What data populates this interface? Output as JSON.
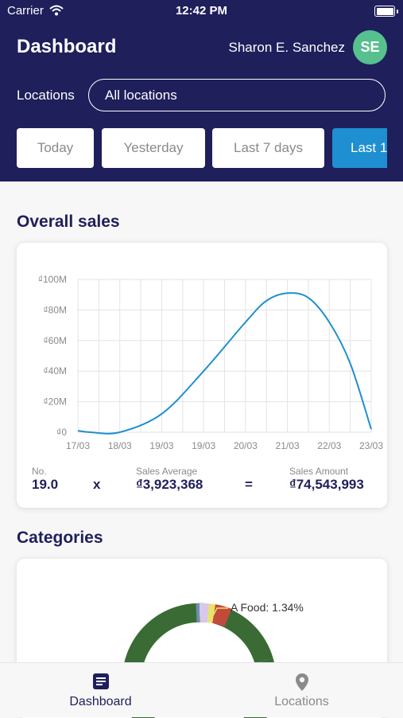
{
  "status_bar": {
    "carrier": "Carrier",
    "time": "12:42 PM"
  },
  "header": {
    "title": "Dashboard",
    "user_name": "Sharon E. Sanchez",
    "avatar_initials": "SE",
    "locations_label": "Locations",
    "locations_value": "All locations"
  },
  "date_ranges": [
    {
      "label": "Today",
      "selected": false
    },
    {
      "label": "Yesterday",
      "selected": false
    },
    {
      "label": "Last 7 days",
      "selected": false
    },
    {
      "label": "Last 1",
      "selected": true
    }
  ],
  "overall_sales": {
    "title": "Overall sales",
    "stats": {
      "no_label": "No.",
      "no_value": "19.0",
      "times": "x",
      "avg_label": "Sales Average",
      "avg_value": "₫3,923,368",
      "equals": "=",
      "amount_label": "Sales Amount",
      "amount_value": "₫74,543,993"
    }
  },
  "chart_data": {
    "type": "line",
    "x_tick_labels": [
      "17/03",
      "18/03",
      "19/03",
      "19/03",
      "20/03",
      "21/03",
      "22/03",
      "23/03"
    ],
    "y_tick_labels": [
      "₫0",
      "₫20M",
      "₫40M",
      "₫60M",
      "₫80M",
      "₫100M"
    ],
    "ylim": [
      0,
      100
    ],
    "grid": true,
    "series": [
      {
        "color": "#1e8fd0",
        "points": [
          {
            "x": 0.0,
            "y": 1
          },
          {
            "x": 0.3,
            "y": 0
          },
          {
            "x": 1.0,
            "y": 0
          },
          {
            "x": 2.0,
            "y": 12
          },
          {
            "x": 3.0,
            "y": 40
          },
          {
            "x": 4.0,
            "y": 72
          },
          {
            "x": 4.5,
            "y": 86
          },
          {
            "x": 5.0,
            "y": 91
          },
          {
            "x": 5.5,
            "y": 88
          },
          {
            "x": 6.0,
            "y": 72
          },
          {
            "x": 6.5,
            "y": 45
          },
          {
            "x": 7.0,
            "y": 2
          }
        ]
      }
    ]
  },
  "categories": {
    "title": "Categories",
    "donut_label": "A Food: 1.34%",
    "segment_colors": [
      "#3a6b35",
      "#c24a3a",
      "#e8e46a",
      "#d9c8e8",
      "#6f8fb0"
    ]
  },
  "tab_bar": {
    "tabs": [
      {
        "label": "Dashboard",
        "active": true
      },
      {
        "label": "Locations",
        "active": false
      }
    ]
  }
}
